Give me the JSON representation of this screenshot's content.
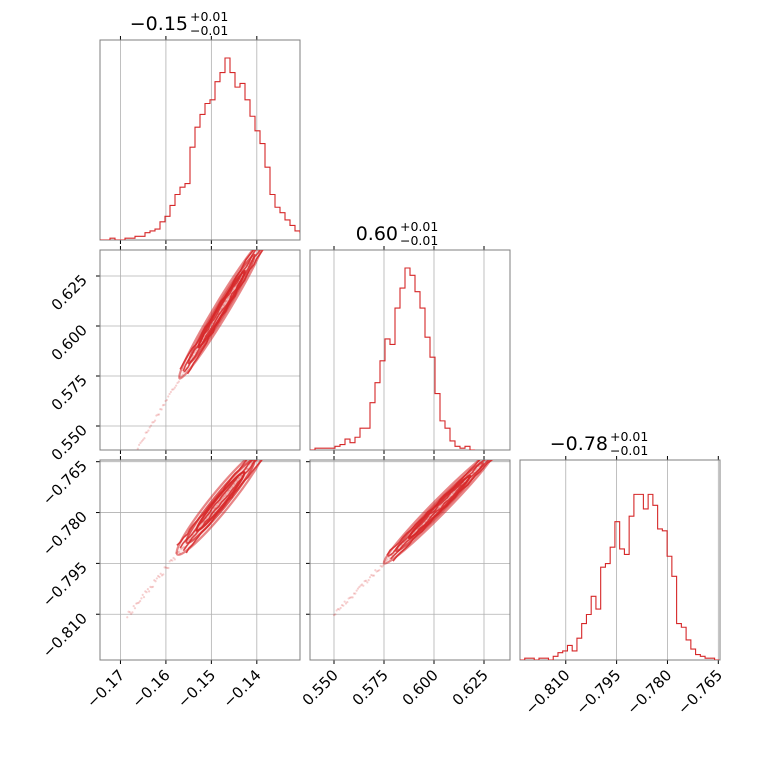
{
  "chart_data": {
    "type": "corner",
    "series_color": "#d62728",
    "parameters": [
      {
        "key": "p0",
        "range": [
          -0.1745,
          -0.1305
        ],
        "ticks": [
          -0.17,
          -0.16,
          -0.15,
          -0.14
        ],
        "tick_labels": [
          "−0.17",
          "−0.16",
          "−0.15",
          "−0.14"
        ],
        "title": {
          "value": "−0.15",
          "upper": "+0.01",
          "lower": "−0.01"
        },
        "histogram": {
          "bins_start": -0.1745,
          "bin_width": 0.0011,
          "counts": [
            0.0,
            0.0,
            0.01,
            0.0,
            0.0,
            0.01,
            0.01,
            0.02,
            0.02,
            0.04,
            0.05,
            0.06,
            0.1,
            0.13,
            0.19,
            0.25,
            0.29,
            0.31,
            0.51,
            0.62,
            0.69,
            0.75,
            0.77,
            0.87,
            0.92,
            1.0,
            0.92,
            0.84,
            0.86,
            0.77,
            0.68,
            0.6,
            0.53,
            0.4,
            0.25,
            0.18,
            0.15,
            0.11,
            0.08,
            0.05,
            0.04,
            0.02,
            0.01,
            0.01,
            0.0
          ]
        }
      },
      {
        "key": "p1",
        "range": [
          0.538,
          0.638
        ],
        "ticks": [
          0.55,
          0.575,
          0.6,
          0.625
        ],
        "tick_labels": [
          "0.550",
          "0.575",
          "0.600",
          "0.625"
        ],
        "title": {
          "value": "0.60",
          "upper": "+0.01",
          "lower": "−0.01"
        },
        "histogram": {
          "bins_start": 0.538,
          "bin_width": 0.0025,
          "counts": [
            0.0,
            0.01,
            0.01,
            0.01,
            0.01,
            0.02,
            0.03,
            0.06,
            0.04,
            0.07,
            0.12,
            0.12,
            0.26,
            0.37,
            0.49,
            0.61,
            0.58,
            0.78,
            0.89,
            1.0,
            0.96,
            0.87,
            0.78,
            0.62,
            0.51,
            0.31,
            0.16,
            0.12,
            0.05,
            0.02,
            0.01,
            0.02,
            0.0
          ]
        }
      },
      {
        "key": "p2",
        "range": [
          -0.8235,
          -0.7645
        ],
        "ticks": [
          -0.81,
          -0.795,
          -0.78,
          -0.765
        ],
        "tick_labels": [
          "−0.810",
          "−0.795",
          "−0.780",
          "−0.765"
        ],
        "title": {
          "value": "−0.78",
          "upper": "+0.01",
          "lower": "−0.01"
        },
        "histogram": {
          "bins_start": -0.8235,
          "bin_width": 0.0014,
          "counts": [
            0.0,
            0.01,
            0.01,
            0.0,
            0.01,
            0.01,
            0.0,
            0.02,
            0.04,
            0.05,
            0.08,
            0.05,
            0.12,
            0.2,
            0.25,
            0.35,
            0.28,
            0.51,
            0.53,
            0.62,
            0.76,
            0.61,
            0.58,
            0.79,
            0.91,
            0.91,
            0.83,
            0.91,
            0.85,
            0.72,
            0.71,
            0.57,
            0.46,
            0.2,
            0.18,
            0.11,
            0.06,
            0.03,
            0.02,
            0.01,
            0.01,
            0.0
          ]
        }
      }
    ],
    "pairs": [
      {
        "x": 0,
        "y": 1,
        "slope": 3.75,
        "intercept": 1.1625,
        "x_extent": [
          -0.1685,
          -0.131
        ],
        "core": [
          -0.157,
          -0.1385
        ],
        "width": 0.0015,
        "orientation": 1
      },
      {
        "x": 0,
        "y": 2,
        "slope": 1.65,
        "intercept": -0.5325,
        "x_extent": [
          -0.1685,
          -0.132
        ],
        "core": [
          -0.1575,
          -0.1385
        ],
        "width": 0.0012,
        "orientation": 1
      },
      {
        "x": 1,
        "y": 2,
        "slope": 0.6,
        "intercept": -1.14,
        "x_extent": [
          0.55,
          0.636
        ],
        "core": [
          0.575,
          0.6305
        ],
        "width": 0.0009,
        "orientation": 1
      }
    ],
    "grid": true
  }
}
